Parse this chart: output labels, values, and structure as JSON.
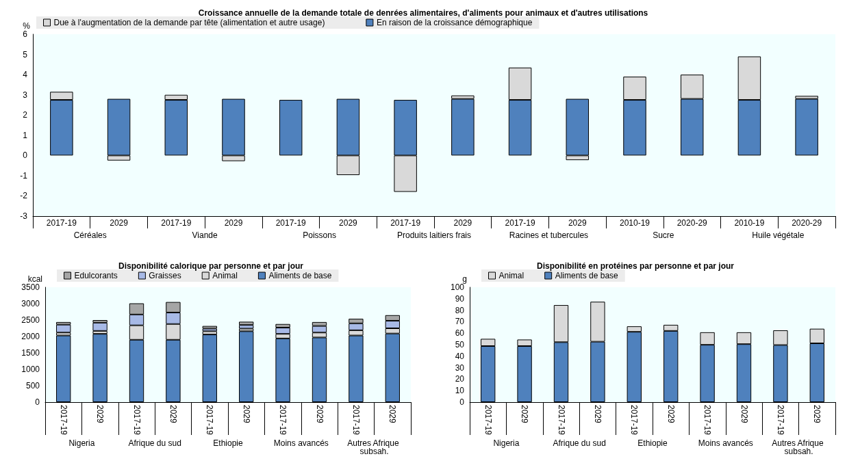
{
  "chart_data": [
    {
      "type": "bar",
      "stacked": true,
      "title": "Croissance annuelle de la demande totale de denrées alimentaires, d'aliments pour animaux et d'autres utilisations",
      "ylabel": "%",
      "categories": [
        "2017-19",
        "2029",
        "2017-19",
        "2029",
        "2017-19",
        "2029",
        "2017-19",
        "2029",
        "2017-19",
        "2029",
        "2010-19",
        "2020-29",
        "2010-19",
        "2020-29"
      ],
      "annotations": [
        "Céréales",
        "Viande",
        "Poissons",
        "Produits laitiers frais",
        "Racines et tubercules",
        "Sucre",
        "Huile végétale"
      ],
      "series": [
        {
          "name": "En raison de la croissance démographique",
          "color": "#4f81bd",
          "values": [
            2.75,
            2.8,
            2.75,
            2.8,
            2.75,
            2.8,
            2.75,
            2.8,
            2.75,
            2.8,
            2.75,
            2.8,
            2.75,
            2.8
          ]
        },
        {
          "name": "Due à l'augmentation de la demande par tête (alimentation et autre usage)",
          "color": "#d9d9d9",
          "values": [
            0.4,
            -0.25,
            0.25,
            -0.28,
            null,
            -0.97,
            -1.8,
            0.17,
            1.6,
            -0.23,
            1.15,
            1.2,
            2.15,
            0.15
          ]
        }
      ],
      "ylim": [
        -3,
        6
      ],
      "yticks": [
        -3,
        -2,
        -1,
        0,
        1,
        2,
        3,
        4,
        5,
        6
      ],
      "legend": "top",
      "grid": false
    },
    {
      "type": "bar",
      "stacked": true,
      "title": "Disponibilité calorique par personne et par jour",
      "ylabel": "kcal",
      "categories": [
        "2017-19",
        "2029",
        "2017-19",
        "2029",
        "2017-19",
        "2029",
        "2017-19",
        "2029",
        "2017-19",
        "2029"
      ],
      "annotations": [
        "Nigeria",
        "Afrique du sud",
        "Ethiopie",
        "Moins avancés",
        "Autres Afrique subsah."
      ],
      "series": [
        {
          "name": "Aliments de base",
          "color": "#4f81bd",
          "values": [
            2030,
            2080,
            1900,
            1900,
            2060,
            2160,
            1940,
            1970,
            2030,
            2090
          ]
        },
        {
          "name": "Animal",
          "color": "#d9d9d9",
          "values": [
            90,
            90,
            440,
            480,
            100,
            80,
            140,
            150,
            160,
            160
          ]
        },
        {
          "name": "Graisses",
          "color": "#a7b9e6",
          "values": [
            240,
            250,
            330,
            350,
            80,
            110,
            190,
            200,
            210,
            230
          ]
        },
        {
          "name": "Edulcorants",
          "color": "#a6a6a6",
          "values": [
            80,
            80,
            340,
            320,
            80,
            100,
            110,
            120,
            140,
            170
          ]
        }
      ],
      "ylim": [
        0,
        3500
      ],
      "yticks": [
        0,
        500,
        1000,
        1500,
        2000,
        2500,
        3000,
        3500
      ],
      "legend": "top",
      "grid": false
    },
    {
      "type": "bar",
      "stacked": true,
      "title": "Disponibilité en protéines par personne et par jour",
      "ylabel": "g",
      "categories": [
        "2017-19",
        "2029",
        "2017-19",
        "2029",
        "2017-19",
        "2029",
        "2017-19",
        "2029",
        "2017-19",
        "2029"
      ],
      "annotations": [
        "Nigeria",
        "Afrique du sud",
        "Ethiopie",
        "Moins avancés",
        "Autres Afrique subsah."
      ],
      "series": [
        {
          "name": "Aliments de base",
          "color": "#4f81bd",
          "values": [
            48.8,
            48.8,
            52.2,
            52.6,
            61.2,
            62,
            49.9,
            50.5,
            49.7,
            51.2
          ]
        },
        {
          "name": "Animal",
          "color": "#d9d9d9",
          "values": [
            6.3,
            5.7,
            32.3,
            34.8,
            4.8,
            5.3,
            10.9,
            10.3,
            12.8,
            12.7
          ]
        }
      ],
      "ylim": [
        0,
        100
      ],
      "yticks": [
        0,
        10,
        20,
        30,
        40,
        50,
        60,
        70,
        80,
        90,
        100
      ],
      "legend": "top",
      "grid": false
    }
  ]
}
